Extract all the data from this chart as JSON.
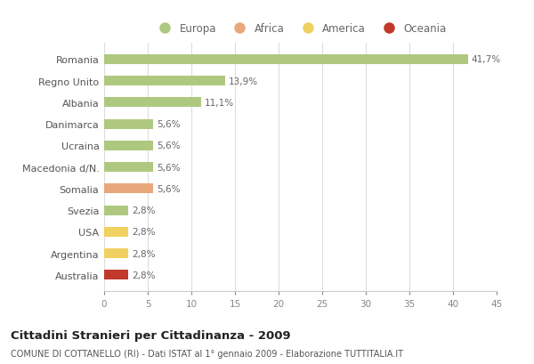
{
  "categories": [
    "Romania",
    "Regno Unito",
    "Albania",
    "Danimarca",
    "Ucraina",
    "Macedonia d/N.",
    "Somalia",
    "Svezia",
    "USA",
    "Argentina",
    "Australia"
  ],
  "values": [
    41.7,
    13.9,
    11.1,
    5.6,
    5.6,
    5.6,
    5.6,
    2.8,
    2.8,
    2.8,
    2.8
  ],
  "labels": [
    "41,7%",
    "13,9%",
    "11,1%",
    "5,6%",
    "5,6%",
    "5,6%",
    "5,6%",
    "2,8%",
    "2,8%",
    "2,8%",
    "2,8%"
  ],
  "bar_colors": [
    "#aec97f",
    "#aec97f",
    "#aec97f",
    "#aec97f",
    "#aec97f",
    "#aec97f",
    "#e8a87c",
    "#aec97f",
    "#f0d060",
    "#f0d060",
    "#c0392b"
  ],
  "legend_labels": [
    "Europa",
    "Africa",
    "America",
    "Oceania"
  ],
  "legend_colors": [
    "#aec97f",
    "#e8a87c",
    "#f0d060",
    "#c0392b"
  ],
  "title": "Cittadini Stranieri per Cittadinanza - 2009",
  "subtitle": "COMUNE DI COTTANELLO (RI) - Dati ISTAT al 1° gennaio 2009 - Elaborazione TUTTITALIA.IT",
  "xlim": [
    0,
    45
  ],
  "xticks": [
    0,
    5,
    10,
    15,
    20,
    25,
    30,
    35,
    40,
    45
  ],
  "background_color": "#ffffff",
  "grid_color": "#dddddd",
  "bar_height": 0.45
}
